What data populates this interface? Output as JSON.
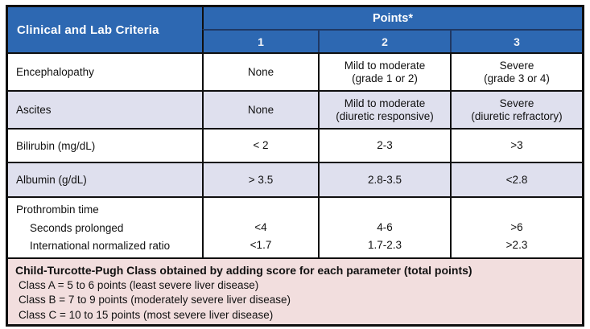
{
  "header": {
    "criteria_label": "Clinical and Lab Criteria",
    "points_label": "Points*",
    "point_columns": [
      "1",
      "2",
      "3"
    ]
  },
  "rows": [
    {
      "criteria": "Encephalopathy",
      "p1": "None",
      "p2": "Mild to moderate\n(grade 1 or 2)",
      "p3": "Severe\n(grade 3 or 4)"
    },
    {
      "criteria": "Ascites",
      "p1": "None",
      "p2": "Mild to moderate\n(diuretic responsive)",
      "p3": "Severe\n(diuretic refractory)"
    },
    {
      "criteria": "Bilirubin (mg/dL)",
      "p1": "< 2",
      "p2": "2-3",
      "p3": ">3"
    },
    {
      "criteria": "Albumin (g/dL)",
      "p1": "> 3.5",
      "p2": "2.8-3.5",
      "p3": "<2.8"
    }
  ],
  "prothrombin": {
    "group_label": "Prothrombin time",
    "sub_rows": [
      {
        "label": "Seconds prolonged",
        "p1": "<4",
        "p2": "4-6",
        "p3": ">6"
      },
      {
        "label": "International normalized ratio",
        "p1": "<1.7",
        "p2": "1.7-2.3",
        "p3": ">2.3"
      }
    ]
  },
  "footer": {
    "title": "Child-Turcotte-Pugh Class obtained by adding score for each parameter (total points)",
    "classes": [
      "Class A = 5 to 6 points (least severe liver disease)",
      "Class B = 7 to 9 points (moderately severe liver disease)",
      "Class C = 10 to 15 points (most severe liver disease)"
    ]
  },
  "colors": {
    "header_blue": "#2d68b2",
    "header_navy_border": "#1f3864",
    "row_alt_lavender": "#dfe0ee",
    "footer_pink": "#f2dede",
    "border_black": "#0f0f0f"
  }
}
